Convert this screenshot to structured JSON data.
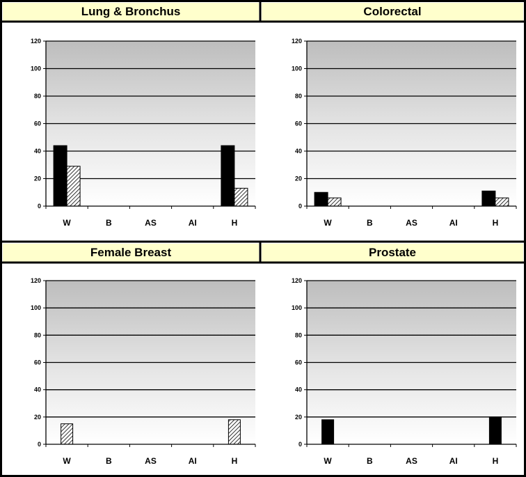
{
  "chart_data": [
    {
      "type": "bar",
      "title": "Lung & Bronchus",
      "categories": [
        "W",
        "B",
        "AS",
        "AI",
        "H"
      ],
      "yticks": [
        "0",
        "20",
        "40",
        "60",
        "80",
        "100",
        "120"
      ],
      "ylim": [
        0,
        120
      ],
      "grid": true,
      "series": [
        {
          "style": "solid-black",
          "values": [
            44,
            0,
            0,
            0,
            44
          ]
        },
        {
          "style": "hatched",
          "values": [
            29,
            0,
            0,
            0,
            13
          ]
        }
      ]
    },
    {
      "type": "bar",
      "title": "Colorectal",
      "categories": [
        "W",
        "B",
        "AS",
        "AI",
        "H"
      ],
      "yticks": [
        "0",
        "20",
        "40",
        "60",
        "80",
        "100",
        "120"
      ],
      "ylim": [
        0,
        120
      ],
      "grid": true,
      "series": [
        {
          "style": "solid-black",
          "values": [
            10,
            0,
            0,
            0,
            11
          ]
        },
        {
          "style": "hatched",
          "values": [
            6,
            0,
            0,
            0,
            6
          ]
        }
      ]
    },
    {
      "type": "bar",
      "title": "Female Breast",
      "categories": [
        "W",
        "B",
        "AS",
        "AI",
        "H"
      ],
      "yticks": [
        "0",
        "20",
        "40",
        "60",
        "80",
        "100",
        "120"
      ],
      "ylim": [
        0,
        120
      ],
      "grid": true,
      "series": [
        {
          "style": "hatched",
          "values": [
            15,
            0,
            0,
            0,
            18
          ]
        }
      ]
    },
    {
      "type": "bar",
      "title": "Prostate",
      "categories": [
        "W",
        "B",
        "AS",
        "AI",
        "H"
      ],
      "yticks": [
        "0",
        "20",
        "40",
        "60",
        "80",
        "100",
        "120"
      ],
      "ylim": [
        0,
        120
      ],
      "grid": true,
      "series": [
        {
          "style": "solid-black",
          "values": [
            18,
            0,
            0,
            0,
            20
          ]
        }
      ]
    }
  ]
}
